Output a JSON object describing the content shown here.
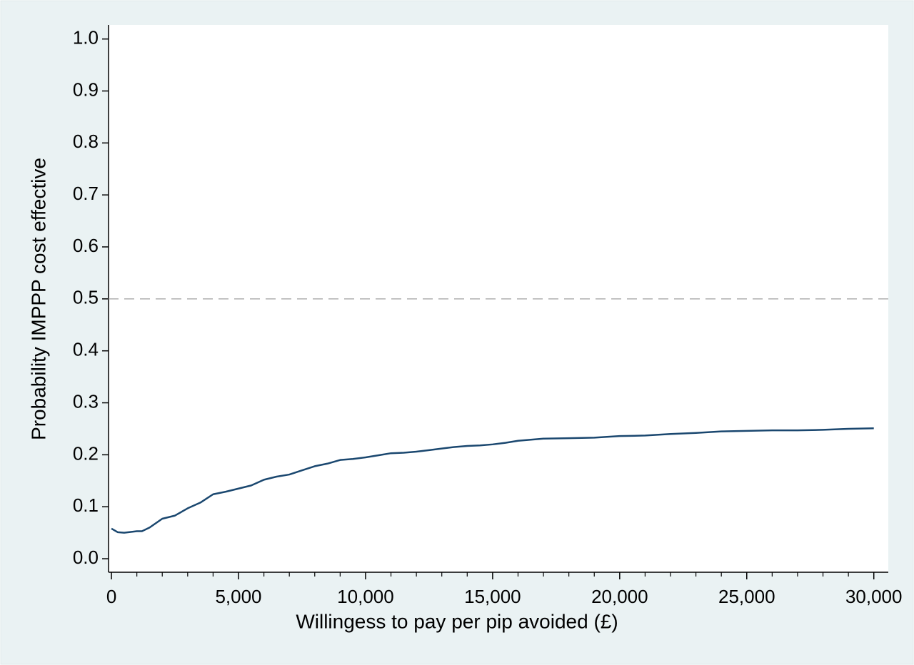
{
  "chart_data": {
    "type": "line",
    "xlabel": "Willingess to pay per pip avoided (£)",
    "ylabel": "Probability IMPPP cost effective",
    "x": [
      0,
      250,
      500,
      1000,
      1200,
      1500,
      2000,
      2500,
      3000,
      3500,
      4000,
      4500,
      5000,
      5500,
      6000,
      6500,
      7000,
      7500,
      8000,
      8500,
      9000,
      9500,
      10000,
      10500,
      11000,
      11500,
      12000,
      12500,
      13000,
      13500,
      14000,
      14500,
      15000,
      15500,
      16000,
      16500,
      17000,
      18000,
      19000,
      20000,
      21000,
      22000,
      23000,
      24000,
      25000,
      26000,
      27000,
      28000,
      29000,
      30000
    ],
    "series": [
      {
        "name": "IMPPP",
        "color": "#1a476f",
        "values": [
          0.058,
          0.051,
          0.05,
          0.053,
          0.053,
          0.06,
          0.077,
          0.083,
          0.097,
          0.108,
          0.124,
          0.129,
          0.135,
          0.141,
          0.152,
          0.158,
          0.162,
          0.17,
          0.178,
          0.183,
          0.19,
          0.192,
          0.195,
          0.199,
          0.203,
          0.204,
          0.206,
          0.209,
          0.212,
          0.215,
          0.217,
          0.218,
          0.22,
          0.223,
          0.227,
          0.229,
          0.231,
          0.232,
          0.233,
          0.236,
          0.237,
          0.24,
          0.242,
          0.245,
          0.246,
          0.247,
          0.247,
          0.248,
          0.25,
          0.251
        ]
      }
    ],
    "xlim": [
      -114,
      30570
    ],
    "ylim": [
      -0.026,
      1.027
    ],
    "xticks": [
      0,
      {
        "value": 5000,
        "label": "5,000"
      },
      {
        "value": 10000,
        "label": "10,000"
      },
      {
        "value": 15000,
        "label": "15,000"
      },
      {
        "value": 20000,
        "label": "20,000"
      },
      {
        "value": 25000,
        "label": "25,000"
      },
      {
        "value": 30000,
        "label": "30,000"
      }
    ],
    "xminorticks": [
      1000,
      2000,
      3000,
      4000,
      6000,
      7000,
      8000,
      9000,
      11000,
      12000,
      13000,
      14000,
      16000,
      17000,
      18000,
      19000,
      21000,
      22000,
      23000,
      24000,
      26000,
      27000,
      28000,
      29000
    ],
    "yticks": [
      {
        "value": 0,
        "label": "0.0"
      },
      0.1,
      0.2,
      0.3,
      0.4,
      0.5,
      0.6,
      0.7,
      0.8,
      0.9,
      {
        "value": 1,
        "label": "1.0"
      }
    ],
    "hline": 0.5,
    "hline_color": "#b0b0b0",
    "grid": false
  }
}
